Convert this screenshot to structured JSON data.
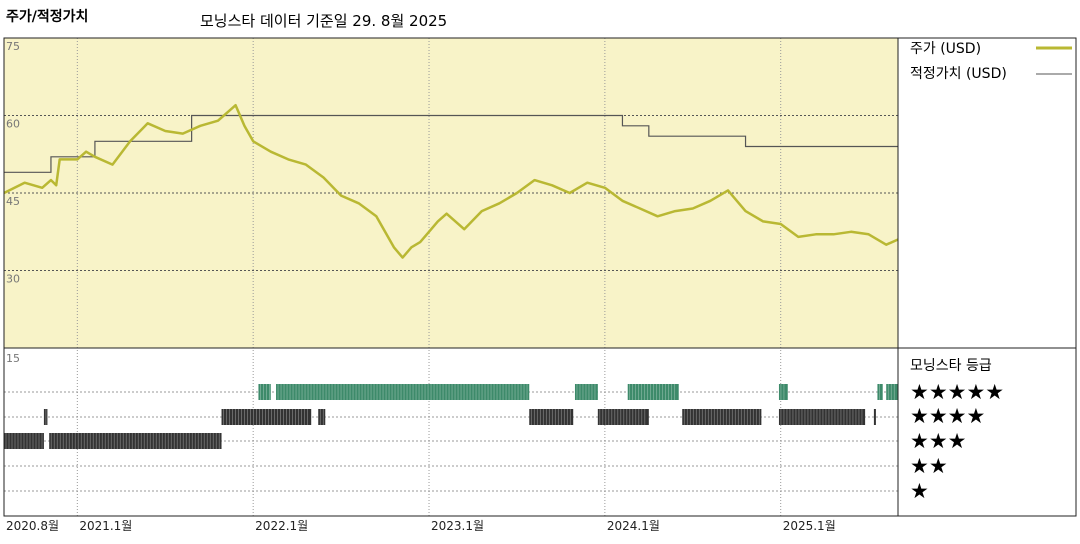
{
  "header": {
    "title": "주가/적정가치",
    "subtitle": "모닝스타 데이터 기준일 29. 8월 2025"
  },
  "colors": {
    "plot_bg": "#f8f3c8",
    "price": "#b9b833",
    "fair_value": "#555555",
    "five_star": "#3d8a6a",
    "other_star": "#333333",
    "grid": "#555555"
  },
  "legend": {
    "price": "주가 (USD)",
    "fair_value": "적정가치 (USD)",
    "rating_title": "모닝스타 등급",
    "stars": [
      "★★★★★",
      "★★★★",
      "★★★",
      "★★",
      "★"
    ]
  },
  "chart_data": {
    "type": "line",
    "x_axis_labels": [
      "2020.8월",
      "2021.1월",
      "2022.1월",
      "2023.1월",
      "2024.1월",
      "2025.1월"
    ],
    "x_label_dates": [
      2020.583,
      2021.0,
      2022.0,
      2023.0,
      2024.0,
      2025.0
    ],
    "x_range": [
      2020.583,
      2025.667
    ],
    "y_ticks": [
      "75",
      "60",
      "45",
      "30"
    ],
    "y_tick_values": [
      75,
      60,
      45,
      30
    ],
    "ylim": [
      15,
      75
    ],
    "grid": true,
    "series": [
      {
        "name": "주가 (USD)",
        "points": [
          [
            2020.583,
            45.0
          ],
          [
            2020.7,
            47.0
          ],
          [
            2020.8,
            46.0
          ],
          [
            2020.85,
            47.5
          ],
          [
            2020.88,
            46.5
          ],
          [
            2020.9,
            51.5
          ],
          [
            2021.0,
            51.5
          ],
          [
            2021.05,
            53.0
          ],
          [
            2021.1,
            52.0
          ],
          [
            2021.2,
            50.5
          ],
          [
            2021.3,
            55.0
          ],
          [
            2021.4,
            58.5
          ],
          [
            2021.5,
            57.0
          ],
          [
            2021.6,
            56.5
          ],
          [
            2021.7,
            58.0
          ],
          [
            2021.8,
            59.0
          ],
          [
            2021.9,
            62.0
          ],
          [
            2021.95,
            58.0
          ],
          [
            2022.0,
            55.0
          ],
          [
            2022.1,
            53.0
          ],
          [
            2022.2,
            51.5
          ],
          [
            2022.3,
            50.5
          ],
          [
            2022.4,
            48.0
          ],
          [
            2022.5,
            44.5
          ],
          [
            2022.6,
            43.0
          ],
          [
            2022.7,
            40.5
          ],
          [
            2022.8,
            34.5
          ],
          [
            2022.85,
            32.5
          ],
          [
            2022.9,
            34.5
          ],
          [
            2022.95,
            35.5
          ],
          [
            2023.0,
            37.5
          ],
          [
            2023.05,
            39.5
          ],
          [
            2023.1,
            41.0
          ],
          [
            2023.2,
            38.0
          ],
          [
            2023.3,
            41.5
          ],
          [
            2023.4,
            43.0
          ],
          [
            2023.5,
            45.0
          ],
          [
            2023.6,
            47.5
          ],
          [
            2023.7,
            46.5
          ],
          [
            2023.8,
            45.0
          ],
          [
            2023.9,
            47.0
          ],
          [
            2024.0,
            46.0
          ],
          [
            2024.1,
            43.5
          ],
          [
            2024.2,
            42.0
          ],
          [
            2024.3,
            40.5
          ],
          [
            2024.4,
            41.5
          ],
          [
            2024.5,
            42.0
          ],
          [
            2024.6,
            43.5
          ],
          [
            2024.7,
            45.5
          ],
          [
            2024.8,
            41.5
          ],
          [
            2024.9,
            39.5
          ],
          [
            2025.0,
            39.0
          ],
          [
            2025.1,
            36.5
          ],
          [
            2025.2,
            37.0
          ],
          [
            2025.3,
            37.0
          ],
          [
            2025.4,
            37.5
          ],
          [
            2025.5,
            37.0
          ],
          [
            2025.6,
            35.0
          ],
          [
            2025.667,
            36.0
          ]
        ]
      },
      {
        "name": "적정가치 (USD)",
        "steps": [
          [
            2020.583,
            49.0
          ],
          [
            2020.85,
            52.0
          ],
          [
            2021.1,
            55.0
          ],
          [
            2021.65,
            60.0
          ],
          [
            2024.1,
            58.0
          ],
          [
            2024.25,
            56.0
          ],
          [
            2024.8,
            54.0
          ],
          [
            2025.667,
            54.0
          ]
        ]
      }
    ],
    "star_rating_periods": [
      {
        "stars": 5,
        "ranges": [
          [
            2022.03,
            2022.1
          ],
          [
            2022.13,
            2023.57
          ],
          [
            2023.83,
            2023.96
          ],
          [
            2024.13,
            2024.42
          ],
          [
            2024.99,
            2025.04
          ],
          [
            2025.55,
            2025.58
          ],
          [
            2025.6,
            2025.667
          ]
        ]
      },
      {
        "stars": 4,
        "ranges": [
          [
            2020.81,
            2020.83
          ],
          [
            2021.82,
            2022.33
          ],
          [
            2022.37,
            2022.41
          ],
          [
            2023.57,
            2023.82
          ],
          [
            2023.96,
            2024.25
          ],
          [
            2024.44,
            2024.89
          ],
          [
            2024.99,
            2025.48
          ],
          [
            2025.53,
            2025.54
          ]
        ]
      },
      {
        "stars": 3,
        "ranges": [
          [
            2020.583,
            2020.81
          ],
          [
            2020.84,
            2021.82
          ]
        ]
      }
    ]
  }
}
